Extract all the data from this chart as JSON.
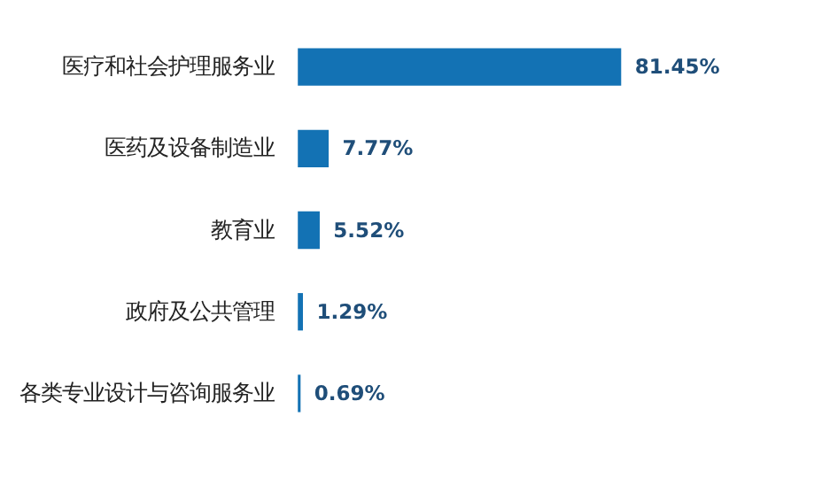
{
  "chart_data": {
    "type": "bar",
    "orientation": "horizontal",
    "categories": [
      "医疗和社会护理服务业",
      "医药及设备制造业",
      "教育业",
      "政府及公共管理",
      "各类专业设计与咨询服务业"
    ],
    "values": [
      81.45,
      7.77,
      5.52,
      1.29,
      0.69
    ],
    "value_labels": [
      "81.45%",
      "7.77%",
      "5.52%",
      "1.29%",
      "0.69%"
    ],
    "color": "#1372b4",
    "grid": false
  }
}
